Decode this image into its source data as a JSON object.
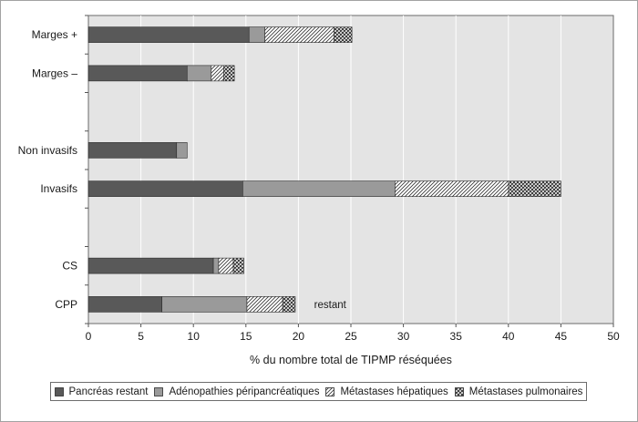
{
  "chart_data": {
    "type": "bar",
    "orientation": "horizontal",
    "stacked": true,
    "categories": [
      "Marges +",
      "Marges –",
      "",
      "Non invasifs",
      "Invasifs",
      "",
      "CS",
      "CPP"
    ],
    "series": [
      {
        "name": "Pancréas restant",
        "values": [
          15.3,
          9.4,
          null,
          8.4,
          14.7,
          null,
          11.9,
          7.0
        ],
        "color": "#595959",
        "pattern": "solid"
      },
      {
        "name": "Adénopathies péripancréatiques",
        "values": [
          1.5,
          2.3,
          null,
          1.0,
          14.5,
          null,
          0.5,
          8.1
        ],
        "color": "#9a9a9a",
        "pattern": "solid"
      },
      {
        "name": "Métastases hépatiques",
        "values": [
          6.6,
          1.2,
          null,
          0,
          10.8,
          null,
          1.4,
          3.4
        ],
        "color": "#ffffff",
        "pattern": "diagonal"
      },
      {
        "name": "Métastases pulmonaires",
        "values": [
          1.7,
          1.0,
          null,
          0,
          5.0,
          null,
          1.0,
          1.2
        ],
        "color": "#3a3a3a",
        "pattern": "crosshatch"
      }
    ],
    "xlabel": "% du nombre total de TIPMP réséquées",
    "ylabel": "",
    "xlim": [
      0,
      50
    ],
    "xticks": [
      0,
      5,
      10,
      15,
      20,
      25,
      30,
      35,
      40,
      45,
      50
    ],
    "grid": true,
    "legend_position": "bottom",
    "annotations": [
      {
        "text": "restant",
        "x": 21.5,
        "category": "CPP"
      }
    ]
  }
}
